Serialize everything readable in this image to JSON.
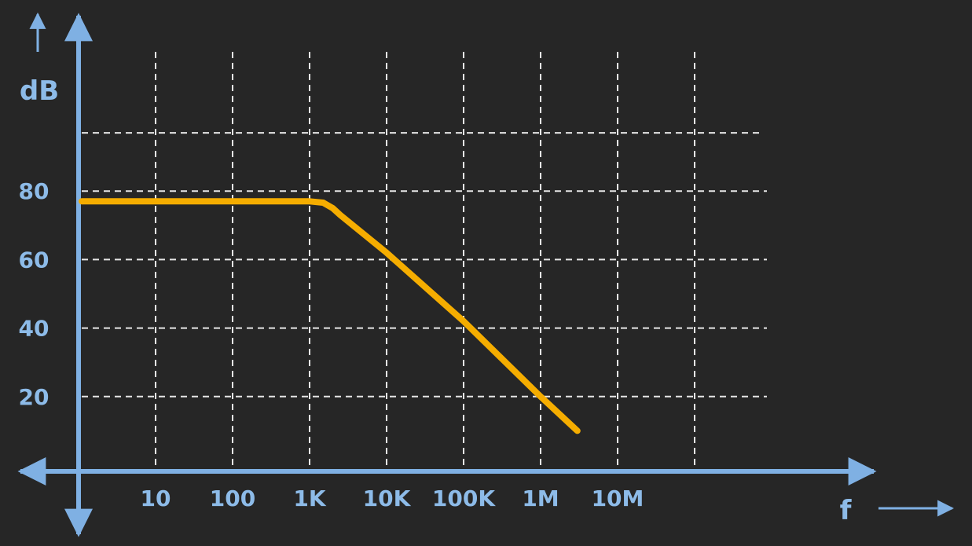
{
  "chart_data": {
    "type": "line",
    "ylabel": "dB",
    "xlabel": "f",
    "x_scale": "log",
    "x_ticks": [
      {
        "value": 10,
        "label": "10"
      },
      {
        "value": 100,
        "label": "100"
      },
      {
        "value": 1000,
        "label": "1K"
      },
      {
        "value": 10000,
        "label": "10K"
      },
      {
        "value": 100000,
        "label": "100K"
      },
      {
        "value": 1000000,
        "label": "1M"
      },
      {
        "value": 10000000,
        "label": "10M"
      }
    ],
    "y_ticks": [
      {
        "value": 20,
        "label": "20"
      },
      {
        "value": 40,
        "label": "40"
      },
      {
        "value": 60,
        "label": "60"
      },
      {
        "value": 80,
        "label": "80"
      }
    ],
    "series": [
      {
        "x": [
          1,
          10,
          100,
          1000,
          1500,
          2000,
          2500,
          10000,
          100000,
          1000000,
          3000000
        ],
        "y": [
          77,
          77,
          77,
          77,
          76.6,
          75,
          73,
          62,
          42,
          20,
          10
        ]
      }
    ],
    "grid": true
  },
  "colors": {
    "background": "#262626",
    "axis": "#7fb0e3",
    "labels": "#8dbbe8",
    "grid": "#e6e6e6",
    "curve": "#f5ad00"
  }
}
